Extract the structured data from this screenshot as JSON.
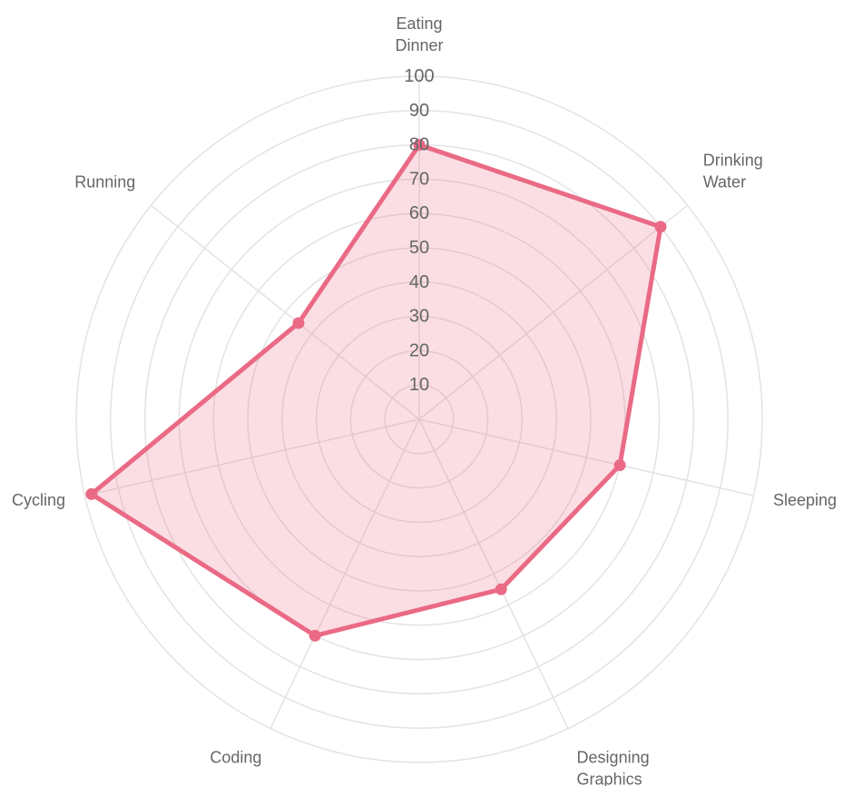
{
  "chart_data": {
    "type": "radar",
    "labels": [
      [
        "Eating",
        "Dinner"
      ],
      [
        "Drinking",
        "Water"
      ],
      [
        "Sleeping"
      ],
      [
        "Designing",
        "Graphics"
      ],
      [
        "Coding"
      ],
      [
        "Cycling"
      ],
      [
        "Running"
      ]
    ],
    "r_range": [
      0,
      100
    ],
    "ticks": [
      "10",
      "20",
      "30",
      "40",
      "50",
      "60",
      "70",
      "80",
      "90",
      "100"
    ],
    "grid": true,
    "series": [
      {
        "values": [
          80,
          90,
          60,
          55,
          70,
          98,
          45
        ],
        "border_color": "#ea6a85",
        "fill_color": "#ea6a85"
      }
    ]
  }
}
